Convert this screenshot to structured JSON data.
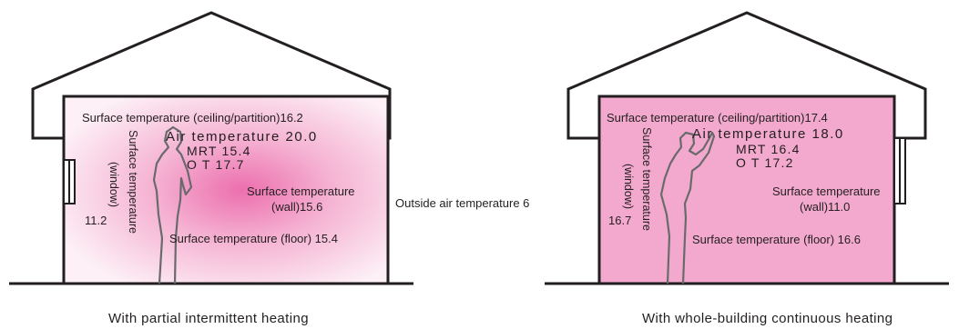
{
  "outside_temperature": "Outside air temperature 6",
  "rooms": [
    {
      "caption": "With partial intermittent heating",
      "ceiling_surface": "Surface temperature (ceiling/partition)16.2",
      "air_temp": "Air temperature 20.0",
      "mrt": "MRT  15.4",
      "ot": "O  T  17.7",
      "wall_surface_line1": "Surface temperature",
      "wall_surface_line2": "(wall)15.6",
      "floor_surface": "Surface temperature (floor)   15.4",
      "window_surface_main": "Surface temperature",
      "window_surface_sub": "(window)",
      "window_value": "11.2"
    },
    {
      "caption": "With whole-building continuous heating",
      "ceiling_surface": "Surface temperature (ceiling/partition)17.4",
      "air_temp": "Air temperature 18.0",
      "mrt": "MRT  16.4",
      "ot": "O  T  17.2",
      "wall_surface_line1": "Surface temperature",
      "wall_surface_line2": "(wall)11.0",
      "floor_surface": "Surface temperature (floor)  16.6",
      "window_surface_main": "Surface temperature",
      "window_surface_sub": "(window)",
      "window_value": "16.7"
    }
  ],
  "colors": {
    "outline": "#231f20",
    "continuous_fill": "#f2a9cd",
    "partial_center": "#ec6fae",
    "partial_edge": "#fbe2ee"
  }
}
